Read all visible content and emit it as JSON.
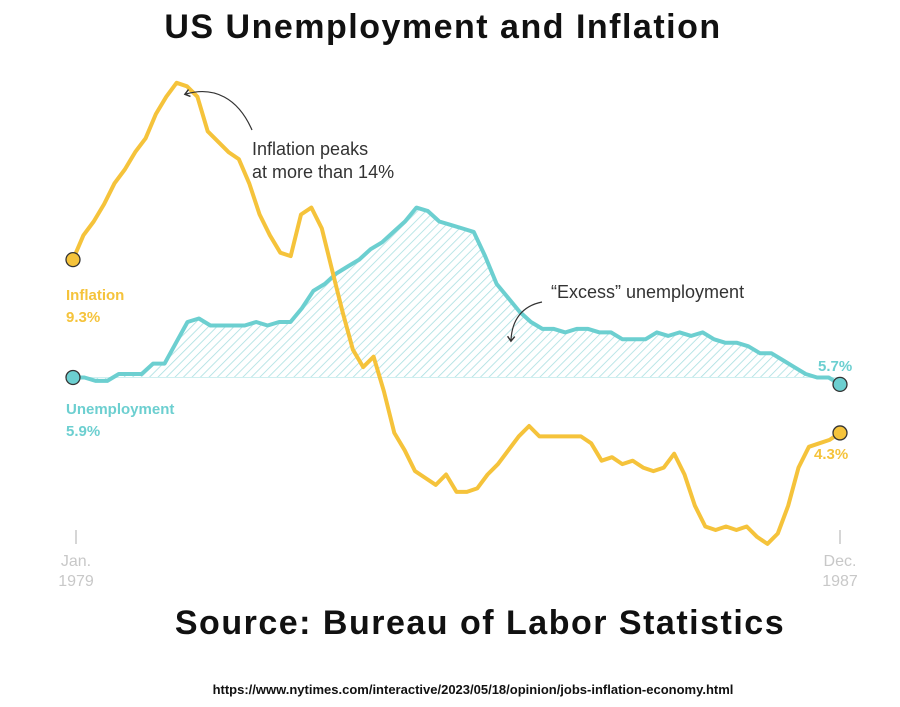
{
  "title": "US Unemployment and Inflation",
  "source": "Source: Bureau of Labor Statistics",
  "url": "https://www.nytimes.com/interactive/2023/05/18/opinion/jobs-inflation-economy.html",
  "colors": {
    "inflation": "#f5c33b",
    "unemployment": "#6ccfd0",
    "hatch": "#a9dfe1",
    "axis_text": "#c8c8c8",
    "annotation": "#333333"
  },
  "annotations": {
    "peak_line1": "Inflation peaks",
    "peak_line2": "at more than 14%",
    "excess": "“Excess” unemployment"
  },
  "labels": {
    "inflation_name": "Inflation",
    "inflation_start": "9.3%",
    "inflation_end": "4.3%",
    "unemployment_name": "Unemployment",
    "unemployment_start": "5.9%",
    "unemployment_end": "5.7%"
  },
  "axis": {
    "start_month": "Jan.",
    "start_year": "1979",
    "end_month": "Dec.",
    "end_year": "1987"
  },
  "chart_data": {
    "type": "line",
    "x_start": "1979-01",
    "x_end": "1987-12",
    "series": [
      {
        "name": "Inflation",
        "values": [
          9.3,
          10.0,
          10.4,
          10.9,
          11.5,
          11.9,
          12.4,
          12.8,
          13.5,
          14.0,
          14.4,
          14.3,
          14.0,
          13.0,
          12.7,
          12.4,
          12.2,
          11.5,
          10.6,
          10.0,
          9.5,
          9.4,
          10.6,
          10.8,
          10.2,
          9.0,
          7.8,
          6.7,
          6.2,
          6.5,
          5.5,
          4.3,
          3.8,
          3.2,
          3.0,
          2.8,
          3.1,
          2.6,
          2.6,
          2.7,
          3.1,
          3.4,
          3.8,
          4.2,
          4.5,
          4.2,
          4.2,
          4.2,
          4.2,
          4.2,
          4.0,
          3.5,
          3.6,
          3.4,
          3.5,
          3.3,
          3.2,
          3.3,
          3.7,
          3.1,
          2.2,
          1.6,
          1.5,
          1.6,
          1.5,
          1.6,
          1.3,
          1.1,
          1.4,
          2.2,
          3.3,
          3.9,
          4.0,
          4.1,
          4.3
        ]
      },
      {
        "name": "Unemployment",
        "values": [
          5.9,
          5.9,
          5.8,
          5.8,
          6.0,
          6.0,
          6.0,
          6.3,
          6.3,
          6.9,
          7.5,
          7.6,
          7.4,
          7.4,
          7.4,
          7.4,
          7.5,
          7.4,
          7.5,
          7.5,
          7.9,
          8.4,
          8.6,
          8.9,
          9.1,
          9.3,
          9.6,
          9.8,
          10.1,
          10.4,
          10.8,
          10.7,
          10.4,
          10.3,
          10.2,
          10.1,
          9.4,
          8.6,
          8.2,
          7.8,
          7.5,
          7.3,
          7.3,
          7.2,
          7.3,
          7.3,
          7.2,
          7.2,
          7.0,
          7.0,
          7.0,
          7.2,
          7.1,
          7.2,
          7.1,
          7.2,
          7.0,
          6.9,
          6.9,
          6.8,
          6.6,
          6.6,
          6.4,
          6.2,
          6.0,
          5.9,
          5.9,
          5.7
        ]
      }
    ],
    "baseline": 5.9,
    "ylim": [
      0,
      15
    ]
  }
}
